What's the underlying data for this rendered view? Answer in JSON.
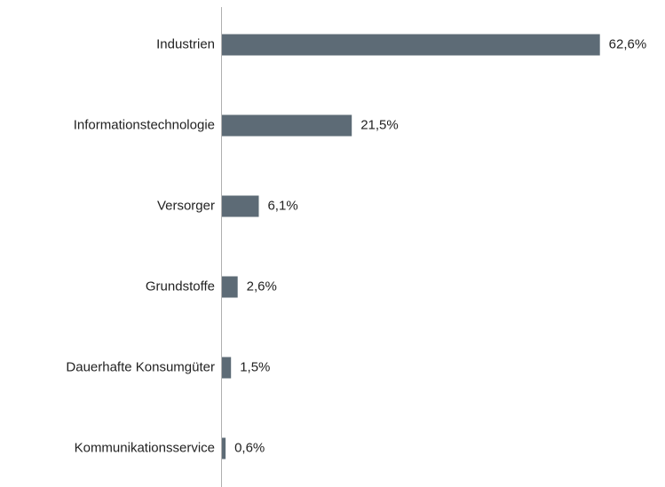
{
  "chart_data": {
    "type": "bar",
    "orientation": "horizontal",
    "categories": [
      "Industrien",
      "Informationstechnologie",
      "Versorger",
      "Grundstoffe",
      "Dauerhafte Konsumgüter",
      "Kommunikationsservice"
    ],
    "values": [
      62.6,
      21.5,
      6.1,
      2.6,
      1.5,
      0.6
    ],
    "value_labels": [
      "62,6%",
      "21,5%",
      "6,1%",
      "2,6%",
      "1,5%",
      "0,6%"
    ],
    "color": "#5d6b76"
  }
}
